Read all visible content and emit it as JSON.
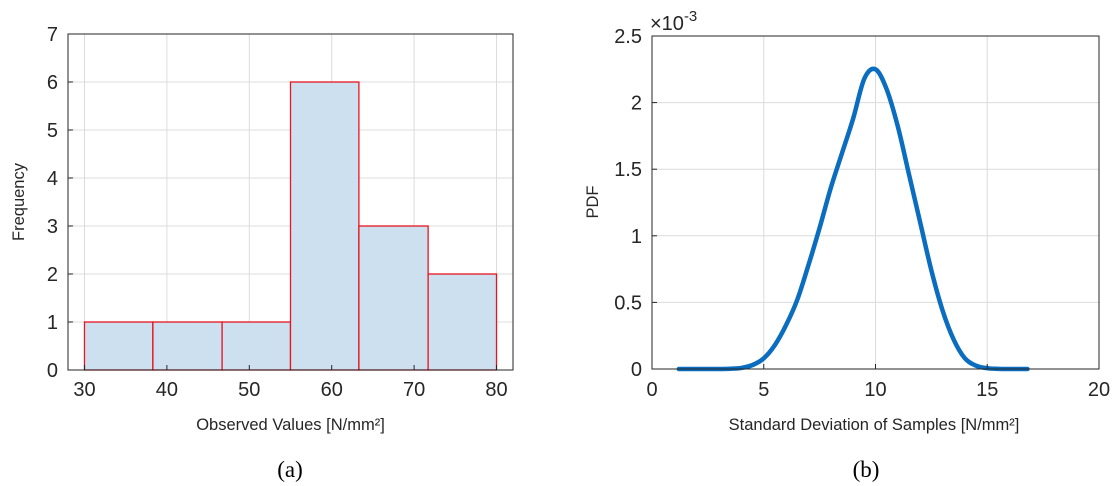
{
  "chart_data": [
    {
      "type": "bar",
      "caption": "(a)",
      "xlabel": "Observed Values [N/mm²]",
      "ylabel": "Frequency",
      "xlim": [
        28,
        82
      ],
      "ylim": [
        0,
        7
      ],
      "xticks": [
        30,
        40,
        50,
        60,
        70,
        80
      ],
      "yticks": [
        0,
        1,
        2,
        3,
        4,
        5,
        6,
        7
      ],
      "grid": true,
      "bar_fill": "#cce0f0",
      "bar_edge": "#e8141e",
      "bins": [
        {
          "start": 30.0,
          "end": 38.3,
          "value": 1
        },
        {
          "start": 38.3,
          "end": 46.7,
          "value": 1
        },
        {
          "start": 46.7,
          "end": 55.0,
          "value": 1
        },
        {
          "start": 55.0,
          "end": 63.3,
          "value": 6
        },
        {
          "start": 63.3,
          "end": 71.7,
          "value": 3
        },
        {
          "start": 71.7,
          "end": 80.0,
          "value": 2
        }
      ]
    },
    {
      "type": "line",
      "caption": "(b)",
      "xlabel": "Standard Deviation of Samples  [N/mm²]",
      "ylabel": "PDF",
      "exponent_label": "×10",
      "exponent_power": "-3",
      "xlim": [
        0,
        20
      ],
      "ylim": [
        0,
        2.5
      ],
      "xticks": [
        0,
        5,
        10,
        15,
        20
      ],
      "yticks": [
        0,
        0.5,
        1,
        1.5,
        2,
        2.5
      ],
      "ytick_labels": [
        "0",
        "0.5",
        "1",
        "1.5",
        "2",
        "2.5"
      ],
      "grid": true,
      "line_color": "#0b6dbf",
      "x": [
        1.2,
        2.0,
        3.0,
        3.5,
        4.0,
        4.5,
        5.0,
        5.5,
        6.0,
        6.5,
        7.0,
        7.5,
        8.0,
        8.5,
        9.0,
        9.5,
        10.0,
        10.5,
        11.0,
        11.5,
        12.0,
        12.5,
        13.0,
        13.5,
        14.0,
        14.5,
        15.0,
        15.5,
        16.0,
        16.8
      ],
      "y": [
        0.0,
        0.0,
        0.0,
        0.002,
        0.008,
        0.03,
        0.08,
        0.18,
        0.33,
        0.52,
        0.78,
        1.06,
        1.36,
        1.62,
        1.88,
        2.18,
        2.25,
        2.1,
        1.82,
        1.46,
        1.1,
        0.74,
        0.44,
        0.22,
        0.08,
        0.025,
        0.006,
        0.001,
        0.0,
        0.0
      ]
    }
  ]
}
